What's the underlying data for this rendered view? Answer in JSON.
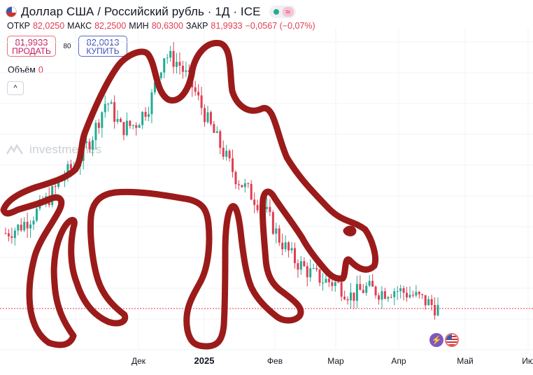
{
  "header": {
    "title": "Доллар США / Российский рубль · 1Д · ICE",
    "wave_symbol": "≈"
  },
  "ohlc": {
    "open_label": "ОТКР",
    "open_value": "82,0250",
    "high_label": "МАКС",
    "high_value": "82,2500",
    "low_label": "МИН",
    "low_value": "80,6300",
    "close_label": "ЗАКР",
    "close_value": "81,9933",
    "change": "−0,0567 (−0,07%)"
  },
  "trade": {
    "sell_price": "81,9933",
    "sell_label": "ПРОДАТЬ",
    "spread": "80",
    "buy_price": "82,0013",
    "buy_label": "КУПИТЬ"
  },
  "volume": {
    "label": "Объём",
    "value": "0"
  },
  "collapse_symbol": "^",
  "watermark": "investmemes",
  "colors": {
    "up": "#22ab94",
    "down": "#e13d52",
    "drawing": "#9b1b1b",
    "price_line": "#e13d52"
  },
  "chart_data": {
    "type": "candlestick",
    "x_tick_labels": [
      "Дек",
      "2025",
      "Фев",
      "Мар",
      "Апр",
      "Май",
      "Ию"
    ],
    "series_close_approx": [
      91.2,
      92.0,
      93.5,
      95.5,
      98.0,
      100.0,
      103.0,
      107.5,
      104.0,
      104.5,
      107.0,
      113.0,
      112.0,
      109.0,
      105.0,
      101.5,
      98.0,
      96.0,
      94.0,
      90.5,
      88.0,
      86.5,
      85.5,
      85.0,
      83.5,
      84.5,
      84.0,
      84.3,
      83.8,
      83.0,
      81.99
    ],
    "grid": true
  }
}
